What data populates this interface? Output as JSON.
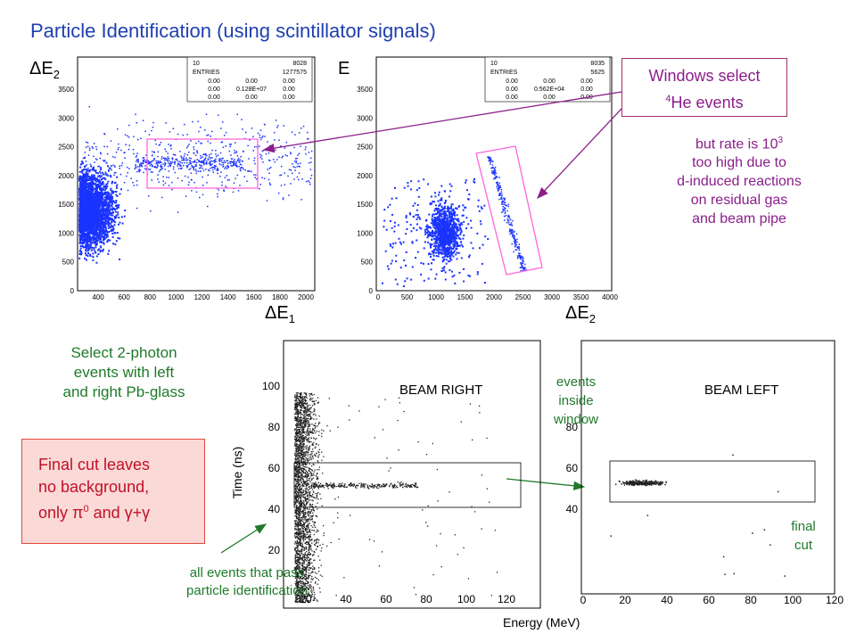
{
  "title": "Particle Identification  (using scintillator signals)",
  "top_left_plot": {
    "y_label": "ΔE",
    "y_label_sub": "2",
    "x_label": "ΔE",
    "x_label_sub": "1",
    "stats": [
      "10",
      "8028",
      "ENTRIES",
      "1277575",
      "0.00",
      "0.00",
      "0.00",
      "0.00",
      "0.128E+07",
      "0.00",
      "0.00",
      "0.00",
      "0.00"
    ]
  },
  "top_right_plot": {
    "y_label": "E",
    "x_label": "ΔE",
    "x_label_sub": "2",
    "stats": [
      "10",
      "8035",
      "ENTRIES",
      "5625",
      "0.00",
      "0.00",
      "0.00",
      "0.00",
      "0.562E+04",
      "0.00",
      "0.00",
      "0.00",
      "0.00"
    ]
  },
  "callout": {
    "line1": "Windows select",
    "line2_sup": "4",
    "line2": "He events"
  },
  "rate_note": {
    "l1": "but rate is 10",
    "l1_sup": "3",
    "l2": "too high due to",
    "l3": "d-induced reactions",
    "l4": "on residual gas",
    "l5": "and beam pipe"
  },
  "select_note": {
    "l1": "Select 2-photon",
    "l2": "events with left",
    "l3": "and right Pb-glass"
  },
  "final_box": {
    "l1": "Final cut leaves",
    "l2": "no background,",
    "l3": "only π",
    "l3_sup": "0",
    "l3b": " and γ+γ"
  },
  "events_inside": {
    "l1": "events",
    "l2": "inside",
    "l3": "window"
  },
  "final_cut": {
    "l1": "final",
    "l2": "cut"
  },
  "all_events": {
    "l1": "all events that pass",
    "l2": "particle identification"
  },
  "bottom_left_plot": {
    "label": "BEAM  RIGHT",
    "y_axis_title": "Time  (ns)"
  },
  "bottom_right_plot": {
    "label": "BEAM  LEFT"
  },
  "energy_label": "Energy  (MeV)",
  "ticks": {
    "tl_x": [
      "400",
      "600",
      "800",
      "1000",
      "1200",
      "1400",
      "1600",
      "1800",
      "2000"
    ],
    "tl_y": [
      "0",
      "500",
      "1000",
      "1500",
      "2000",
      "2500",
      "3000",
      "3500"
    ],
    "tr_x": [
      "0",
      "500",
      "1000",
      "1500",
      "2000",
      "2500",
      "3000",
      "3500",
      "4000"
    ],
    "tr_y": [
      "0",
      "500",
      "1000",
      "1500",
      "2000",
      "2500",
      "3000",
      "3500"
    ],
    "bl_x": [
      "20",
      "40",
      "60",
      "80",
      "100",
      "120"
    ],
    "bl_y": [
      "20",
      "40",
      "60",
      "80",
      "100"
    ],
    "br_x": [
      "0",
      "20",
      "40",
      "60",
      "80",
      "100",
      "120"
    ],
    "br_y": [
      "40",
      "60",
      "80"
    ]
  },
  "colors": {
    "title": "#1f3fb0",
    "scatter": "#1a33ff",
    "window": "#ff66dd",
    "green": "#1f7a2a",
    "purple": "#8a1e8a",
    "red": "#c0102a"
  }
}
